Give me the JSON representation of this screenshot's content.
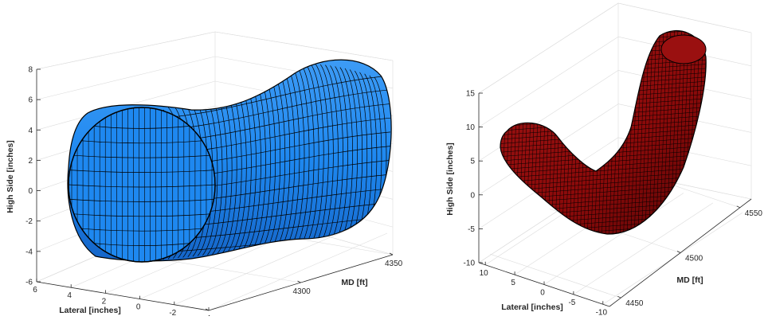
{
  "chart_data": [
    {
      "type": "surface",
      "xlabel": "Lateral [inches]",
      "ylabel": "MD [ft]",
      "zlabel": "High Side [inches]",
      "x_ticks": [
        "6",
        "4",
        "2",
        "0",
        "-2",
        "-4"
      ],
      "y_ticks": [
        "4250",
        "4300",
        "4350"
      ],
      "z_ticks": [
        "-6",
        "-4",
        "-2",
        "0",
        "2",
        "4",
        "6",
        "8"
      ],
      "xlim": [
        -4,
        6
      ],
      "ylim": [
        4250,
        4350
      ],
      "zlim": [
        -6,
        8
      ],
      "surface_color": "#1e88f0",
      "edge_color": "#000000",
      "shape": "tube of radius ~5 inches along MD, center offset bending through the MD range"
    },
    {
      "type": "surface",
      "xlabel": "Lateral [inches]",
      "ylabel": "MD [ft]",
      "zlabel": "High Side [inches]",
      "x_ticks": [
        "10",
        "5",
        "0",
        "-5",
        "-10"
      ],
      "y_ticks": [
        "4450",
        "4500",
        "4550"
      ],
      "z_ticks": [
        "-10",
        "-5",
        "0",
        "5",
        "10",
        "15"
      ],
      "xlim": [
        -10,
        10
      ],
      "ylim": [
        4450,
        4550
      ],
      "zlim": [
        -10,
        15
      ],
      "surface_color": "#8b0a0a",
      "edge_color": "#000000",
      "shape": "U/V-shaped curved tube bending through the MD range"
    }
  ]
}
